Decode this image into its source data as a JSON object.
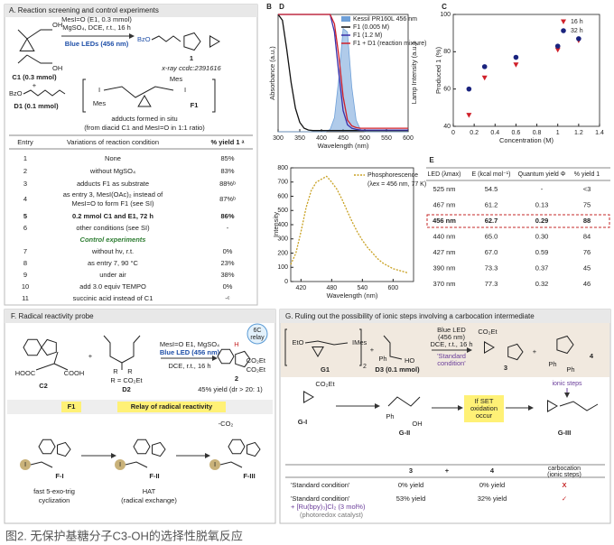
{
  "caption": "图2. 无保护基糖分子C3-OH的选择性脱氧反应",
  "panel_a": {
    "title": "A. Reaction screening and control experiments",
    "scheme": {
      "reagent": "MesI=O (E1, 0.3 mmol)",
      "additive": "MgSO₄, DCE, r.t., 16 h",
      "light": "Blue LEDs (456 nm)",
      "product_group": "BzO",
      "product": "1",
      "xray": "x-ray ccdc:2391616",
      "oh1": "OH",
      "oh2": "OH",
      "substrate1": "C1 (0.3 mmol)",
      "plus": "+",
      "substrate2_group": "BzO",
      "substrate2": "D1 (0.1 mmol)",
      "mes1": "Mes",
      "mes2": "Mes",
      "iodine1": "I",
      "iodine2": "I",
      "adduct": "F1",
      "note1": "adducts formed in situ",
      "note2": "(from diacid C1 and MesI=O in 1:1 ratio)"
    },
    "table": {
      "header": [
        "Entry",
        "Variations of reaction condition",
        "% yield 1 ᵃ"
      ],
      "rows": [
        [
          "1",
          "None",
          "85%"
        ],
        [
          "2",
          "without MgSO₄",
          "83%"
        ],
        [
          "3",
          "adducts F1 as substrate",
          "88%ᵇ"
        ],
        [
          "4",
          [
            "as entry 3, MesI(OAc)₂ instead of",
            "MesI=O to form F1 (see SI)"
          ],
          "87%ᵇ"
        ],
        [
          "5",
          "0.2 mmol C1 and E1, 72 h",
          "86%"
        ],
        [
          "6",
          "other conditions (see SI)",
          "-"
        ]
      ],
      "control_heading": "Control experiments",
      "control_rows": [
        [
          "7",
          "without hν, r.t.",
          "0%"
        ],
        [
          "8",
          "as entry 7, 90 °C",
          "23%"
        ],
        [
          "9",
          "under air",
          "38%"
        ],
        [
          "10",
          "add 3.0 equiv TEMPO",
          "0%"
        ],
        [
          "11",
          "succinic acid instead of C1",
          "-ᶜ"
        ]
      ]
    }
  },
  "chart_data": [
    {
      "type": "line",
      "label": "B",
      "xlabel": "Wavelength (nm)",
      "ylabel": "Absorbance (a.u.)",
      "y2label": "Lamp Intensity (a.u.)",
      "xlim": [
        300,
        600
      ],
      "xticks": [
        300,
        350,
        400,
        450,
        500,
        550,
        600
      ],
      "ylim": [
        0,
        1
      ],
      "y2lim": [
        0,
        1
      ],
      "x": [
        300,
        310,
        320,
        330,
        340,
        350,
        360,
        370,
        380,
        390,
        400,
        410,
        420,
        430,
        440,
        450,
        460,
        470,
        480,
        490,
        500,
        510,
        520,
        530,
        540,
        550,
        560,
        570,
        580,
        590,
        600
      ],
      "series": [
        {
          "name": "Kessil PR160L 456 nm",
          "color": "#6fa0d8",
          "style": "area",
          "axis": "y2",
          "values": [
            0,
            0,
            0,
            0,
            0,
            0,
            0,
            0,
            0,
            0,
            0,
            0,
            0.02,
            0.12,
            0.45,
            0.88,
            0.85,
            0.38,
            0.1,
            0.02,
            0,
            0,
            0,
            0,
            0,
            0,
            0,
            0,
            0,
            0,
            0
          ]
        },
        {
          "name": "F1 (0.005 M)",
          "color": "#111111",
          "values": [
            1,
            0.95,
            0.7,
            0.42,
            0.2,
            0.08,
            0.03,
            0.015,
            0.01,
            0.01,
            0.01,
            0.01,
            0.01,
            0.01,
            0.01,
            0.01,
            0.01,
            0.01,
            0.01,
            0.01,
            0.01,
            0.01,
            0.01,
            0.01,
            0.01,
            0.01,
            0.01,
            0.01,
            0.01,
            0.01,
            0.01
          ]
        },
        {
          "name": "F1 (1.2 M)",
          "color": "#3b2fa8",
          "values": [
            1,
            1,
            1,
            1,
            1,
            1,
            1,
            1,
            1,
            1,
            1,
            1,
            1,
            0.85,
            0.5,
            0.18,
            0.06,
            0.03,
            0.02,
            0.015,
            0.015,
            0.015,
            0.015,
            0.015,
            0.015,
            0.015,
            0.015,
            0.015,
            0.015,
            0.015,
            0.015
          ]
        },
        {
          "name": "F1 + D1 (reaction mixture)",
          "color": "#d0202a",
          "values": [
            1,
            1,
            1,
            1,
            1,
            1,
            1,
            1,
            1,
            1,
            1,
            1,
            1,
            0.92,
            0.65,
            0.3,
            0.1,
            0.05,
            0.035,
            0.03,
            0.03,
            0.03,
            0.03,
            0.03,
            0.03,
            0.03,
            0.03,
            0.03,
            0.03,
            0.03,
            0.03
          ]
        }
      ]
    },
    {
      "type": "scatter",
      "label": "C",
      "xlabel": "Concentration (M)",
      "ylabel": "Produced 1 (%)",
      "xlim": [
        0,
        1.4
      ],
      "xticks": [
        0,
        0.2,
        0.4,
        0.6,
        0.8,
        1,
        1.2,
        1.4
      ],
      "ylim": [
        40,
        100
      ],
      "yticks": [
        40,
        60,
        80,
        100
      ],
      "legend": "upper right",
      "series": [
        {
          "name": "16 h",
          "color": "#d0202a",
          "marker": "triangle",
          "x": [
            0.15,
            0.3,
            0.6,
            1,
            1.2
          ],
          "values": [
            46,
            66,
            73,
            81,
            86
          ]
        },
        {
          "name": "32 h",
          "color": "#1a237e",
          "marker": "circle",
          "x": [
            0.15,
            0.3,
            0.6,
            1,
            1.2
          ],
          "values": [
            60,
            72,
            77,
            83,
            87
          ]
        }
      ]
    },
    {
      "type": "line",
      "label": "D",
      "xlabel": "Wavelength (nm)",
      "ylabel": "Intensity",
      "legend_note": "(λex = 456 nm, 77 K)",
      "xlim": [
        400,
        640
      ],
      "xticks": [
        420,
        480,
        540,
        600
      ],
      "ylim": [
        0,
        800
      ],
      "yticks": [
        0,
        100,
        200,
        300,
        400,
        500,
        600,
        700,
        800
      ],
      "x": [
        400,
        410,
        420,
        430,
        440,
        450,
        460,
        470,
        480,
        490,
        500,
        510,
        520,
        530,
        540,
        550,
        560,
        570,
        580,
        590,
        600,
        610,
        620,
        630
      ],
      "series": [
        {
          "name": "Phosphorescence",
          "color": "#c8a020",
          "style": "dashed",
          "values": [
            120,
            200,
            350,
            520,
            640,
            700,
            720,
            740,
            700,
            650,
            580,
            500,
            420,
            350,
            290,
            240,
            200,
            160,
            130,
            110,
            90,
            80,
            70,
            60
          ]
        }
      ]
    }
  ],
  "panel_e": {
    "label": "E",
    "header": [
      "LED (λmax)",
      "E (kcal mol⁻¹)",
      "Quantum yield Φ",
      "% yield 1"
    ],
    "rows": [
      [
        "525 nm",
        "54.5",
        "-",
        "<3"
      ],
      [
        "467 nm",
        "61.2",
        "0.13",
        "75"
      ],
      [
        "456 nm",
        "62.7",
        "0.29",
        "88"
      ],
      [
        "440 nm",
        "65.0",
        "0.30",
        "84"
      ],
      [
        "427 nm",
        "67.0",
        "0.59",
        "76"
      ],
      [
        "390 nm",
        "73.3",
        "0.37",
        "45"
      ],
      [
        "370 nm",
        "77.3",
        "0.32",
        "46"
      ]
    ]
  },
  "panel_f": {
    "title": "F. Radical reactivity probe",
    "hooc": "HOOC",
    "cooh": "COOH",
    "c2": "C2",
    "plus": "+",
    "r1": "R",
    "r2": "R",
    "r_def": "R = CO₂Et",
    "d2": "D2",
    "cond1": "MesI=O E1, MgSO₄",
    "cond2": "Blue LED (456 nm)",
    "cond3": "DCE, r.t., 16 h",
    "h": "H",
    "ester1": "CO₂Et",
    "ester2": "CO₂Et",
    "product": "2",
    "yield": "45% yield (dr > 20: 1)",
    "relay1": "6C",
    "relay2": "relay",
    "relay_bar": "Relay of radical reactivity",
    "f1": "F1",
    "co2": "-CO₂",
    "fi": "F-I",
    "fii": "F-II",
    "fiii": "F-III",
    "step1a": "fast 5-exo-trig",
    "step1b": "cyclization",
    "step2a": "HAT",
    "step2b": "(radical exchange)",
    "iod1": "I",
    "iod2": "I",
    "iod3": "I"
  },
  "panel_g": {
    "title": "G. Ruling out the possibility of ionic steps involving a carbocation intermediate",
    "eto": "EtO",
    "imes": "IMes",
    "sub2": "2",
    "g1": "G1",
    "plus": "+",
    "ph": "Ph",
    "ho": "HO",
    "d3": "D3 (0.1 mmol)",
    "cond1": "Blue LED",
    "cond2": "(456 nm)",
    "cond3": "DCE, r.t., 16 h",
    "cond4": "'Standard",
    "cond5": "condition'",
    "co2et": "CO₂Et",
    "p3": "3",
    "plus2": "+",
    "p4": "4",
    "ph2": "Ph",
    "ph3": "Ph",
    "ionic": "ionic steps",
    "gi": "G-I",
    "gi_ester": "CO₂Et",
    "gii": "G-II",
    "giii": "G-III",
    "ph4": "Ph",
    "oh": "OH",
    "set1": "If SET",
    "set2": "oxidation",
    "set3": "occur",
    "table": {
      "header": [
        "3",
        "+",
        "4"
      ],
      "carbocation": "carbocation",
      "ionic_note": "(ionic steps)",
      "rows": [
        [
          "'Standard condition'",
          "0% yield",
          "0% yield",
          "X"
        ],
        [
          "'Standard condition'",
          "53% yield",
          "32% yield",
          "✓"
        ]
      ],
      "additive": "+ [Ru(bpy)₃]Cl₂ (3 mol%)",
      "catalyst": "(photoredox catalyst)"
    }
  }
}
